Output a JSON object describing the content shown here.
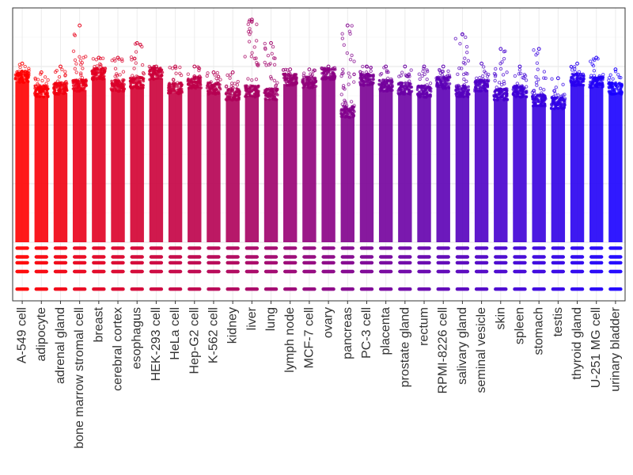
{
  "chart_data": {
    "type": "scatter",
    "title": "",
    "xlabel": "",
    "ylabel": "",
    "grid": true,
    "legend": "none",
    "color_gradient": {
      "start": "#ff0000",
      "end": "#1a00ff"
    },
    "ylim": [
      0,
      10
    ],
    "categories": [
      "A-549 cell",
      "adipocyte",
      "adrenal gland",
      "bone marrow stromal cell",
      "breast",
      "cerebral cortex",
      "esophagus",
      "HEK-293 cell",
      "HeLa cell",
      "Hep-G2 cell",
      "K-562 cell",
      "kidney",
      "liver",
      "lung",
      "lymph node",
      "MCF-7 cell",
      "ovary",
      "pancreas",
      "PC-3 cell",
      "placenta",
      "prostate gland",
      "rectum",
      "RPMI-8226 cell",
      "salivary gland",
      "seminal vesicle",
      "skin",
      "spleen",
      "stomach",
      "testis",
      "thyroid gland",
      "U-251 MG cell",
      "urinary bladder"
    ],
    "series": [
      {
        "values": {
          "body_top": [
            7.5,
            7.0,
            7.1,
            7.2,
            7.6,
            7.2,
            7.3,
            7.6,
            7.1,
            7.3,
            7.1,
            6.9,
            7.0,
            6.9,
            7.4,
            7.3,
            7.6,
            6.3,
            7.4,
            7.2,
            7.1,
            7.0,
            7.3,
            7.0,
            7.2,
            6.9,
            7.0,
            6.7,
            6.6,
            7.4,
            7.3,
            7.1
          ],
          "max": [
            8.1,
            7.8,
            8.0,
            9.4,
            8.3,
            8.3,
            8.8,
            8.0,
            8.0,
            8.0,
            7.8,
            7.8,
            9.6,
            8.8,
            7.9,
            7.9,
            8.0,
            9.4,
            8.0,
            8.0,
            8.0,
            8.0,
            8.0,
            9.1,
            8.1,
            8.6,
            8.0,
            8.6,
            7.6,
            8.1,
            8.3,
            7.9
          ],
          "bands": [
            0.4,
            1.0,
            1.3,
            1.5,
            1.8
          ]
        }
      }
    ]
  }
}
